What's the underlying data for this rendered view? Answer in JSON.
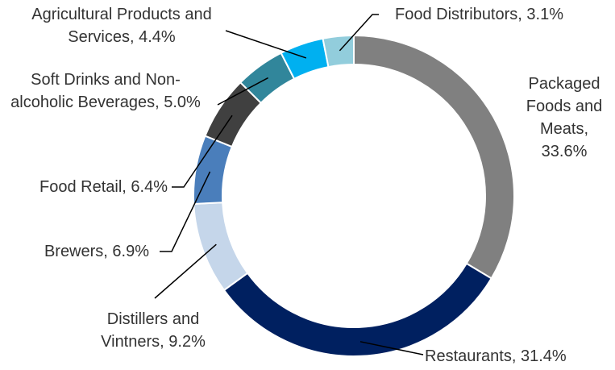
{
  "chart_data": {
    "type": "donut",
    "labels": [
      "Packaged Foods and Meats, 33.6%",
      "Restaurants, 31.4%",
      "Distillers and Vintners, 9.2%",
      "Brewers, 6.9%",
      "Food Retail, 6.4%",
      "Soft Drinks and Non-alcoholic Beverages, 5.0%",
      "Agricultural Products and Services, 4.4%",
      "Food Distributors, 3.1%"
    ],
    "values": [
      33.6,
      31.4,
      9.2,
      6.9,
      6.4,
      5.0,
      4.4,
      3.1
    ],
    "colors": [
      "#808080",
      "#002060",
      "#c5d6ea",
      "#4a7ebb",
      "#404040",
      "#31869b",
      "#00b0f0",
      "#92cddc"
    ]
  }
}
